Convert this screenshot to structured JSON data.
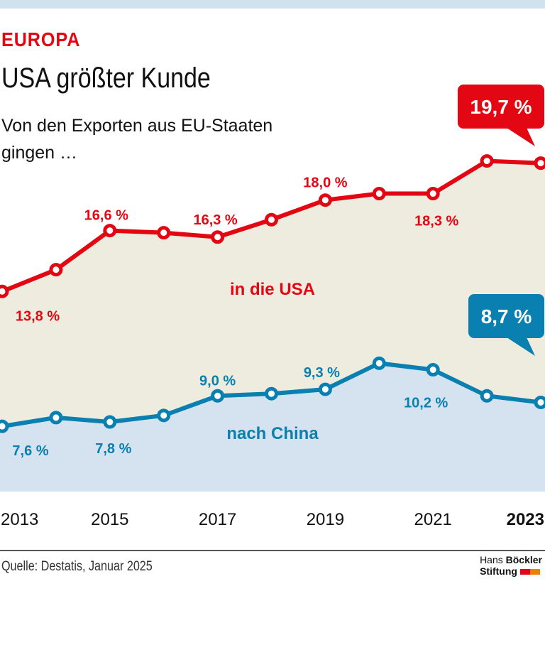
{
  "header": {
    "kicker": "EUROPA",
    "title": "USA größter Kunde",
    "subtitle": "Von den Exporten aus EU-Staaten gingen …"
  },
  "footer": {
    "source": "Quelle: Destatis, Januar 2025",
    "logo_line1_light": "Hans",
    "logo_line1_bold": "Böckler",
    "logo_line2": "Stiftung"
  },
  "colors": {
    "usa": "#e30613",
    "china": "#0a80b0",
    "usa_area": "#eeebdf",
    "china_area": "#d5e3f0",
    "logo_red": "#e30613",
    "logo_orange": "#f07d00"
  },
  "chart_data": {
    "type": "area",
    "x": [
      2013,
      2014,
      2015,
      2016,
      2017,
      2018,
      2019,
      2020,
      2021,
      2022,
      2023
    ],
    "xtick_labels": [
      "2013",
      "2015",
      "2017",
      "2019",
      "2021",
      "2023"
    ],
    "xtick_values": [
      2013,
      2015,
      2017,
      2019,
      2021,
      2023
    ],
    "highlight_tick": "2023",
    "ylim": [
      4.6,
      27.2
    ],
    "grid": false,
    "series": [
      {
        "name": "in die USA",
        "values": [
          13.8,
          14.8,
          16.6,
          16.5,
          16.3,
          17.1,
          18.0,
          18.3,
          18.3,
          19.8,
          19.7
        ],
        "labels": {
          "2013": "13,8 %",
          "2015": "16,6 %",
          "2017": "16,3 %",
          "2019": "18,0 %",
          "2021": "18,3 %"
        },
        "callout": "19,7 %"
      },
      {
        "name": "nach China",
        "values": [
          7.6,
          8.0,
          7.8,
          8.1,
          9.0,
          9.1,
          9.3,
          10.5,
          10.2,
          9.0,
          8.7
        ],
        "labels": {
          "2013": "7,6 %",
          "2015": "7,8 %",
          "2017": "9,0 %",
          "2019": "9,3 %",
          "2021": "10,2 %"
        },
        "callout": "8,7 %"
      }
    ]
  }
}
